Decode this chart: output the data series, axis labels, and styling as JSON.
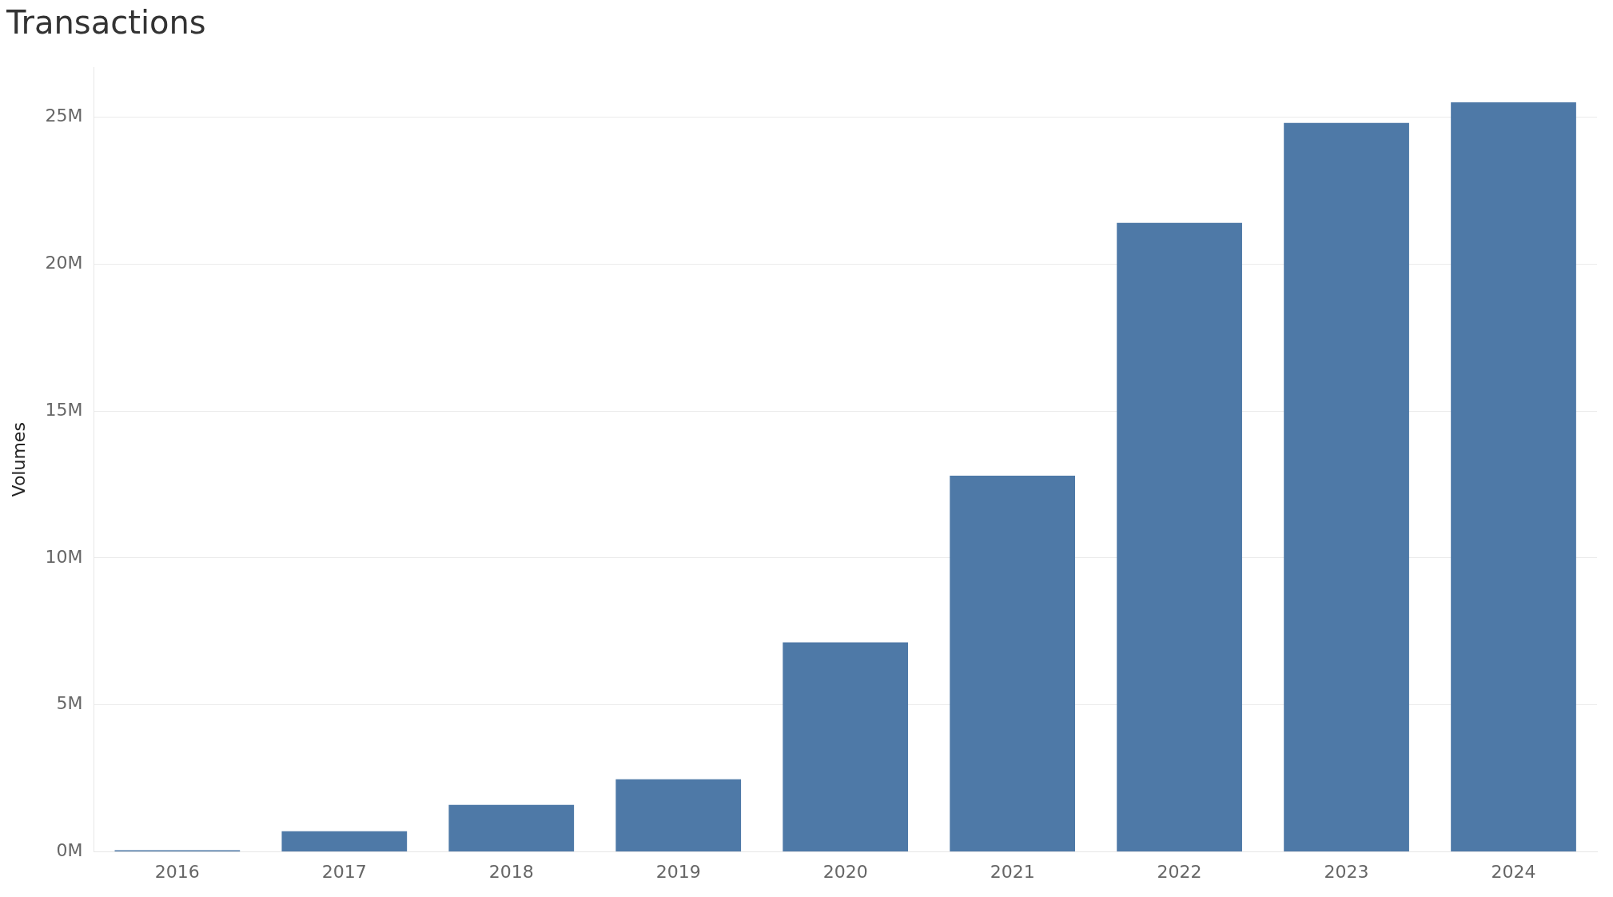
{
  "chart_data": {
    "type": "bar",
    "title": "Transactions",
    "ylabel": "Volumes",
    "categories": [
      "2016",
      "2017",
      "2018",
      "2019",
      "2020",
      "2021",
      "2022",
      "2023",
      "2024"
    ],
    "values": [
      0.06,
      0.7,
      1.6,
      2.47,
      7.13,
      12.8,
      21.4,
      24.8,
      25.5
    ],
    "color": "#4e79a7",
    "ylim": [
      0,
      26.7
    ],
    "yticks": [
      {
        "value": 0,
        "label": "0M"
      },
      {
        "value": 5,
        "label": "5M"
      },
      {
        "value": 10,
        "label": "10M"
      },
      {
        "value": 15,
        "label": "15M"
      },
      {
        "value": 20,
        "label": "20M"
      },
      {
        "value": 25,
        "label": "25M"
      }
    ],
    "grid": "y",
    "legend": false
  }
}
